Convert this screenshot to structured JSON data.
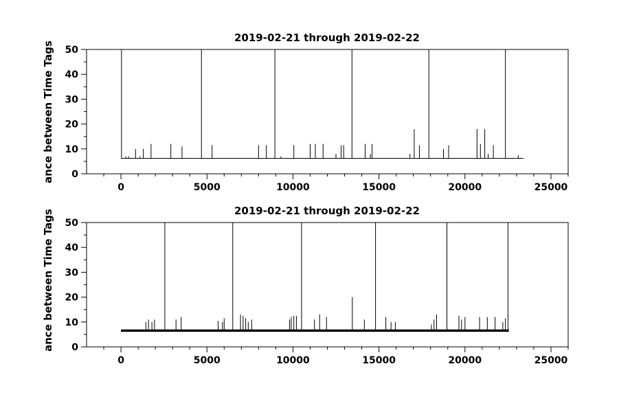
{
  "chart_data": [
    {
      "type": "line",
      "title": "2019-02-21 through 2019-02-22",
      "xlabel": "",
      "ylabel": "ance between Time Tags",
      "xlim": [
        -2000,
        26000
      ],
      "ylim": [
        0,
        50
      ],
      "xticks": [
        0,
        5000,
        10000,
        15000,
        20000,
        25000
      ],
      "xtick_labels": [
        "0",
        "5000",
        "10000",
        "15000",
        "20000",
        "25000"
      ],
      "yticks": [
        0,
        10,
        20,
        30,
        40,
        50
      ],
      "ytick_labels": [
        "0",
        "10",
        "20",
        "30",
        "40",
        "50"
      ],
      "baseline": 6.2,
      "x_end": 23400,
      "spikes": [
        {
          "x": 30,
          "y": 50
        },
        {
          "x": 280,
          "y": 7
        },
        {
          "x": 450,
          "y": 7
        },
        {
          "x": 850,
          "y": 10
        },
        {
          "x": 1100,
          "y": 7
        },
        {
          "x": 1300,
          "y": 10
        },
        {
          "x": 1750,
          "y": 12
        },
        {
          "x": 2900,
          "y": 12
        },
        {
          "x": 3550,
          "y": 11
        },
        {
          "x": 4680,
          "y": 50
        },
        {
          "x": 5300,
          "y": 11.5
        },
        {
          "x": 8000,
          "y": 11.5
        },
        {
          "x": 8450,
          "y": 11.5
        },
        {
          "x": 8950,
          "y": 50
        },
        {
          "x": 9300,
          "y": 7
        },
        {
          "x": 10050,
          "y": 11.5
        },
        {
          "x": 11000,
          "y": 12
        },
        {
          "x": 11300,
          "y": 12
        },
        {
          "x": 11750,
          "y": 12
        },
        {
          "x": 12500,
          "y": 8
        },
        {
          "x": 12800,
          "y": 11.5
        },
        {
          "x": 12950,
          "y": 11.5
        },
        {
          "x": 13430,
          "y": 50
        },
        {
          "x": 14200,
          "y": 12
        },
        {
          "x": 14500,
          "y": 8
        },
        {
          "x": 14600,
          "y": 12
        },
        {
          "x": 16800,
          "y": 8
        },
        {
          "x": 17050,
          "y": 18
        },
        {
          "x": 17350,
          "y": 11.5
        },
        {
          "x": 17900,
          "y": 50
        },
        {
          "x": 18750,
          "y": 10
        },
        {
          "x": 19050,
          "y": 11.5
        },
        {
          "x": 20700,
          "y": 18
        },
        {
          "x": 20900,
          "y": 12
        },
        {
          "x": 21150,
          "y": 18
        },
        {
          "x": 21350,
          "y": 8
        },
        {
          "x": 21650,
          "y": 11.5
        },
        {
          "x": 22350,
          "y": 50
        },
        {
          "x": 23100,
          "y": 7.5
        }
      ]
    },
    {
      "type": "line",
      "title": "2019-02-21 through 2019-02-22",
      "xlabel": "",
      "ylabel": "ance between Time Tags",
      "xlim": [
        -2000,
        26000
      ],
      "ylim": [
        0,
        50
      ],
      "xticks": [
        0,
        5000,
        10000,
        15000,
        20000,
        25000
      ],
      "xtick_labels": [
        "0",
        "5000",
        "10000",
        "15000",
        "20000",
        "25000"
      ],
      "yticks": [
        0,
        10,
        20,
        30,
        40,
        50
      ],
      "ytick_labels": [
        "0",
        "10",
        "20",
        "30",
        "40",
        "50"
      ],
      "baseline": 6.2,
      "baseline_upper": 7,
      "x_end": 22550,
      "spikes": [
        {
          "x": 1450,
          "y": 10
        },
        {
          "x": 1600,
          "y": 11
        },
        {
          "x": 1800,
          "y": 10
        },
        {
          "x": 1950,
          "y": 11
        },
        {
          "x": 2550,
          "y": 50
        },
        {
          "x": 3200,
          "y": 11
        },
        {
          "x": 3500,
          "y": 12
        },
        {
          "x": 5650,
          "y": 10.5
        },
        {
          "x": 5900,
          "y": 10
        },
        {
          "x": 6000,
          "y": 11.5
        },
        {
          "x": 6500,
          "y": 50
        },
        {
          "x": 6950,
          "y": 13
        },
        {
          "x": 7100,
          "y": 12.5
        },
        {
          "x": 7250,
          "y": 11.5
        },
        {
          "x": 7400,
          "y": 10
        },
        {
          "x": 7600,
          "y": 11
        },
        {
          "x": 9800,
          "y": 11
        },
        {
          "x": 9900,
          "y": 12
        },
        {
          "x": 10050,
          "y": 12.5
        },
        {
          "x": 10200,
          "y": 12.5
        },
        {
          "x": 10500,
          "y": 50
        },
        {
          "x": 11250,
          "y": 11
        },
        {
          "x": 11550,
          "y": 13
        },
        {
          "x": 11950,
          "y": 12
        },
        {
          "x": 13450,
          "y": 20
        },
        {
          "x": 14150,
          "y": 11
        },
        {
          "x": 14800,
          "y": 50
        },
        {
          "x": 15400,
          "y": 12
        },
        {
          "x": 15700,
          "y": 10
        },
        {
          "x": 15950,
          "y": 10
        },
        {
          "x": 18050,
          "y": 9
        },
        {
          "x": 18200,
          "y": 11
        },
        {
          "x": 18350,
          "y": 13
        },
        {
          "x": 18950,
          "y": 50
        },
        {
          "x": 19650,
          "y": 12.5
        },
        {
          "x": 19800,
          "y": 11
        },
        {
          "x": 20000,
          "y": 12
        },
        {
          "x": 20850,
          "y": 12
        },
        {
          "x": 21300,
          "y": 12
        },
        {
          "x": 21750,
          "y": 12
        },
        {
          "x": 22200,
          "y": 10
        },
        {
          "x": 22350,
          "y": 11.5
        },
        {
          "x": 22500,
          "y": 50
        }
      ]
    }
  ]
}
